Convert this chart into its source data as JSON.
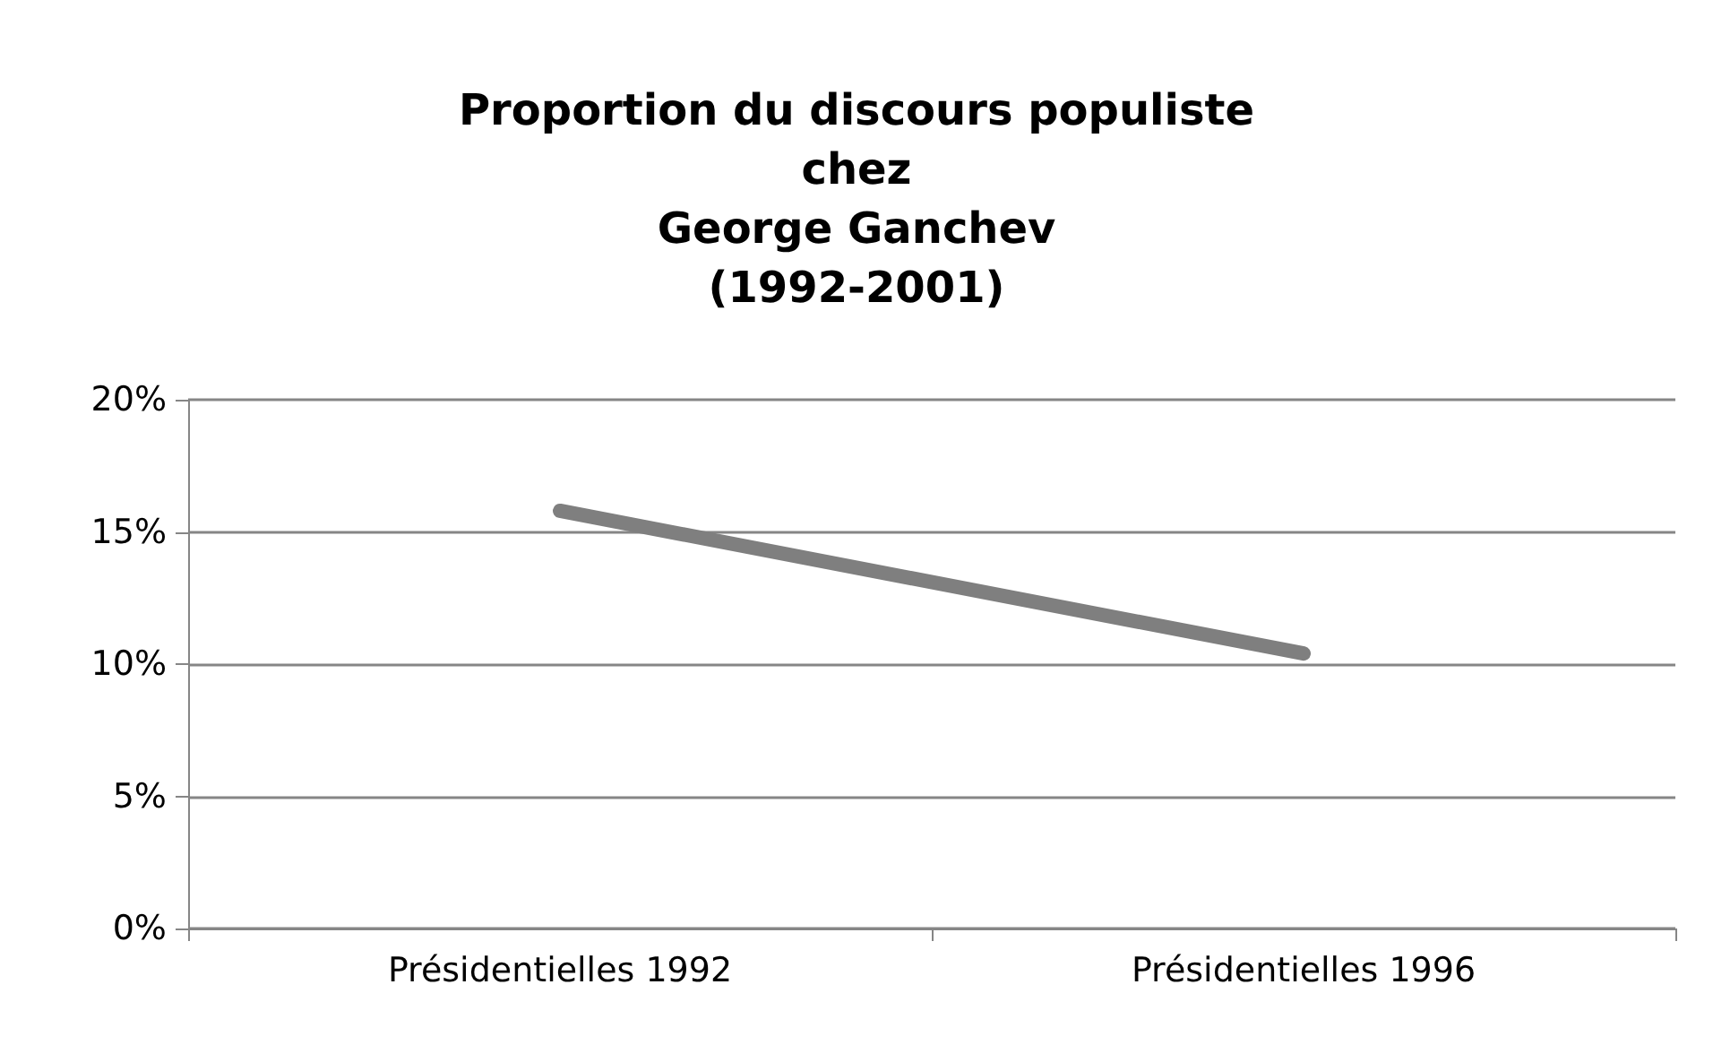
{
  "chart_data": {
    "type": "line",
    "title": "Proportion du discours populiste\nchez\nGeorge Ganchev\n(1992-2001)",
    "categories": [
      "Présidentielles 1992",
      "Présidentielles 1996"
    ],
    "series": [
      {
        "color": "#7f7f7f",
        "values": [
          15.8,
          10.4
        ]
      }
    ],
    "ylim": [
      0,
      20
    ],
    "yticks": [
      {
        "value": 0,
        "label": "0%"
      },
      {
        "value": 5,
        "label": "5%"
      },
      {
        "value": 10,
        "label": "10%"
      },
      {
        "value": 15,
        "label": "15%"
      },
      {
        "value": 20,
        "label": "20%"
      }
    ],
    "grid": "y",
    "marker": "none",
    "line_style": "solid"
  }
}
